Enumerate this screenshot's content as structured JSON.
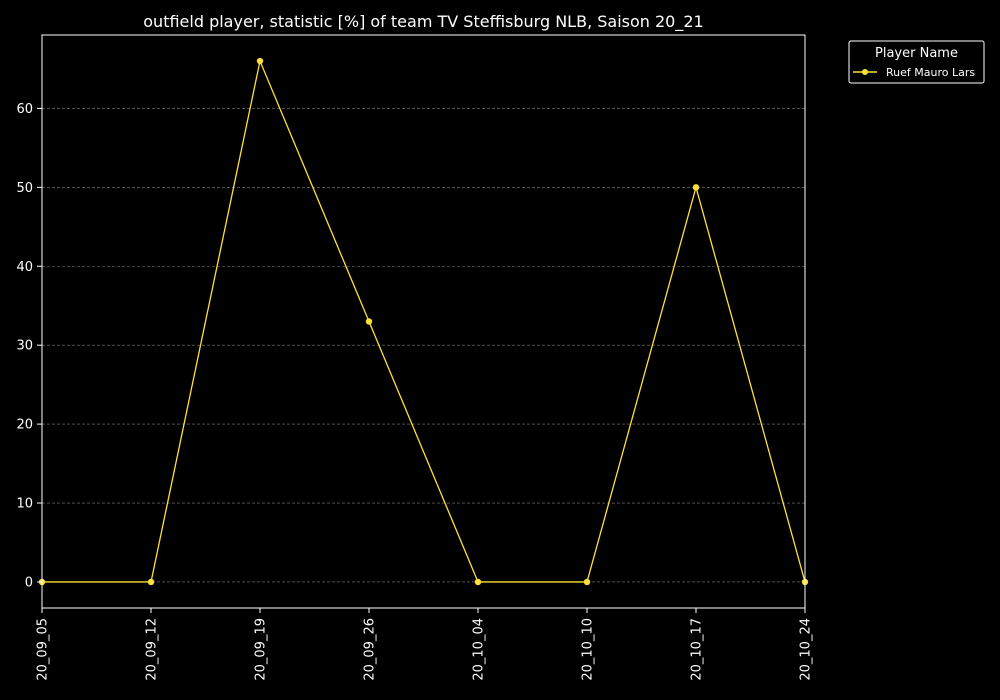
{
  "chart_data": {
    "type": "line",
    "title": "outfield player, statistic [%] of team TV Steffisburg NLB, Saison 20_21",
    "xlabel": "",
    "ylabel": "",
    "categories": [
      "20_09_05",
      "20_09_12",
      "20_09_19",
      "20_09_26",
      "20_10_04",
      "20_10_10",
      "20_10_17",
      "20_10_24"
    ],
    "ylim": [
      -3.3,
      69.3
    ],
    "yticks": [
      0,
      10,
      20,
      30,
      40,
      50,
      60
    ],
    "grid": true,
    "legend": {
      "title": "Player Name",
      "placement": "outside-top-right"
    },
    "series": [
      {
        "name": "Ruef Mauro Lars",
        "color": "#ffe135",
        "values": [
          0,
          0,
          66,
          33,
          0,
          0,
          50,
          0
        ]
      }
    ]
  },
  "colors": {
    "background": "#000000",
    "foreground": "#ffffff",
    "grid": "#808080"
  }
}
